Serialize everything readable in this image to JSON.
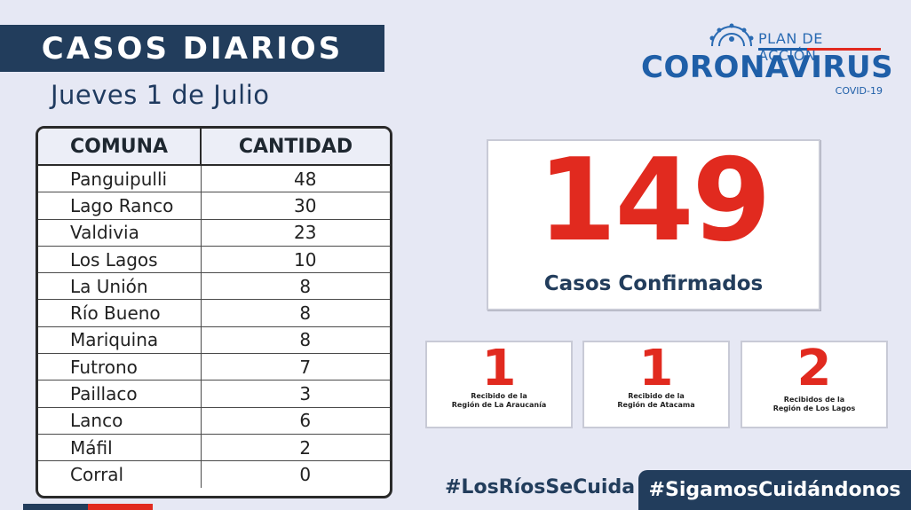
{
  "header": {
    "title": "CASOS DIARIOS",
    "date": "Jueves 1 de Julio"
  },
  "logo": {
    "top": "PLAN DE ACCIÓN",
    "main": "CORONAVIRUS",
    "sub": "COVID-19"
  },
  "table": {
    "col_comuna": "COMUNA",
    "col_cantidad": "CANTIDAD",
    "rows": [
      {
        "comuna": "Panguipulli",
        "cantidad": "48"
      },
      {
        "comuna": "Lago Ranco",
        "cantidad": "30"
      },
      {
        "comuna": "Valdivia",
        "cantidad": "23"
      },
      {
        "comuna": "Los Lagos",
        "cantidad": "10"
      },
      {
        "comuna": "La Unión",
        "cantidad": "8"
      },
      {
        "comuna": "Río Bueno",
        "cantidad": "8"
      },
      {
        "comuna": "Mariquina",
        "cantidad": "8"
      },
      {
        "comuna": "Futrono",
        "cantidad": "7"
      },
      {
        "comuna": "Paillaco",
        "cantidad": "3"
      },
      {
        "comuna": "Lanco",
        "cantidad": "6"
      },
      {
        "comuna": "Máfil",
        "cantidad": "2"
      },
      {
        "comuna": "Corral",
        "cantidad": "0"
      }
    ]
  },
  "summary": {
    "total": "149",
    "total_label": "Casos Confirmados",
    "boxes": [
      {
        "number": "1",
        "line1": "Recibido de la",
        "line2": "Región de La Araucanía"
      },
      {
        "number": "1",
        "line1": "Recibido de la",
        "line2": "Región de Atacama"
      },
      {
        "number": "2",
        "line1": "Recibidos  de la",
        "line2": "Región de Los Lagos"
      }
    ]
  },
  "footer": {
    "hashtag_left": "#LosRíosSeCuida",
    "hashtag_right": "#SigamosCuidándonos"
  },
  "colors": {
    "navy": "#223d5c",
    "red": "#e12a1f",
    "background": "#e6e8f4",
    "logo_blue": "#1f5fa8"
  }
}
